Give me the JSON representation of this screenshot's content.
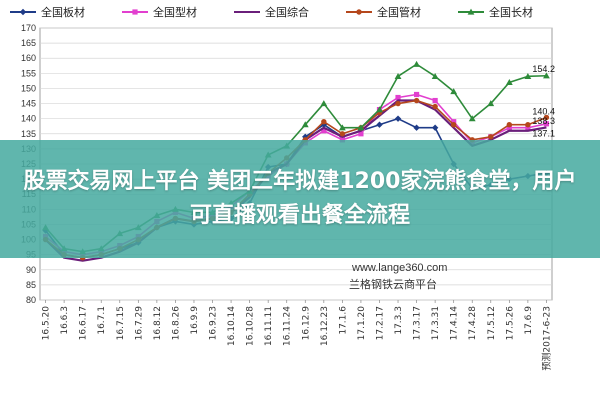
{
  "banner": {
    "title": "股票交易网上平台 美团三年拟建1200家浣熊食堂，用户可直播观看出餐全流程"
  },
  "watermark": {
    "url": "www.lange360.com",
    "name": "兰格钢铁云商平台"
  },
  "chart_data": {
    "type": "line",
    "title": "",
    "xlabel": "",
    "ylabel": "",
    "ylim": [
      80,
      170
    ],
    "yticks": [
      80,
      85,
      90,
      95,
      100,
      105,
      110,
      115,
      120,
      125,
      130,
      135,
      140,
      145,
      150,
      155,
      160,
      165,
      170
    ],
    "grid": true,
    "legend_position": "top",
    "categories": [
      "16.5.20",
      "16.6.3",
      "16.6.17",
      "16.7.1",
      "16.7.15",
      "16.7.29",
      "16.8.12",
      "16.8.26",
      "16.9.9",
      "16.9.23",
      "16.10.14",
      "16.10.28",
      "16.11.11",
      "16.11.24",
      "16.12.9",
      "16.12.23",
      "17.1.6",
      "17.1.20",
      "17.2.17",
      "17.3.3",
      "17.3.17",
      "17.3.31",
      "17.4.14",
      "17.4.28",
      "17.5.12",
      "17.5.26",
      "17.6.9",
      "预测2017-6-23"
    ],
    "series": [
      {
        "name": "全国板材",
        "color": "#1f3c88",
        "marker": "diamond",
        "values": [
          103,
          95,
          94,
          95,
          97,
          99,
          104,
          106,
          105,
          106,
          107,
          112,
          124,
          125,
          134,
          138,
          134,
          136,
          138,
          140,
          137,
          137,
          125,
          117,
          118,
          120,
          121,
          122
        ],
        "end_label": ""
      },
      {
        "name": "全国型材",
        "color": "#e23fcf",
        "marker": "square",
        "values": [
          101,
          96,
          95,
          96,
          98,
          101,
          106,
          109,
          107,
          108,
          111,
          116,
          121,
          125,
          132,
          136,
          133,
          135,
          143,
          147,
          148,
          146,
          139,
          132,
          134,
          137,
          137,
          138.3
        ],
        "end_label": "138.3"
      },
      {
        "name": "全国综合",
        "color": "#6a1f7a",
        "marker": "none",
        "values": [
          100,
          94,
          93,
          94,
          96,
          99,
          104,
          107,
          106,
          107,
          109,
          114,
          122,
          125,
          133,
          137,
          134,
          136,
          141,
          146,
          146,
          143,
          137,
          131,
          133,
          136,
          136,
          137.1
        ],
        "end_label": "137.1"
      },
      {
        "name": "全国管材",
        "color": "#b5471c",
        "marker": "circle",
        "values": [
          100,
          95,
          94,
          95,
          97,
          100,
          104,
          107,
          106,
          107,
          109,
          115,
          122,
          127,
          133,
          139,
          135,
          137,
          142,
          145,
          146,
          144,
          138,
          133,
          134,
          138,
          138,
          140.4
        ],
        "end_label": "140.4"
      },
      {
        "name": "全国长材",
        "color": "#2e8b3a",
        "marker": "triangle",
        "values": [
          104,
          97,
          96,
          97,
          102,
          104,
          108,
          110,
          109,
          109,
          112,
          116,
          128,
          131,
          138,
          145,
          137,
          137,
          143,
          154,
          158,
          154,
          149,
          140,
          145,
          152,
          154,
          154.2
        ],
        "end_label": "154.2"
      }
    ]
  }
}
